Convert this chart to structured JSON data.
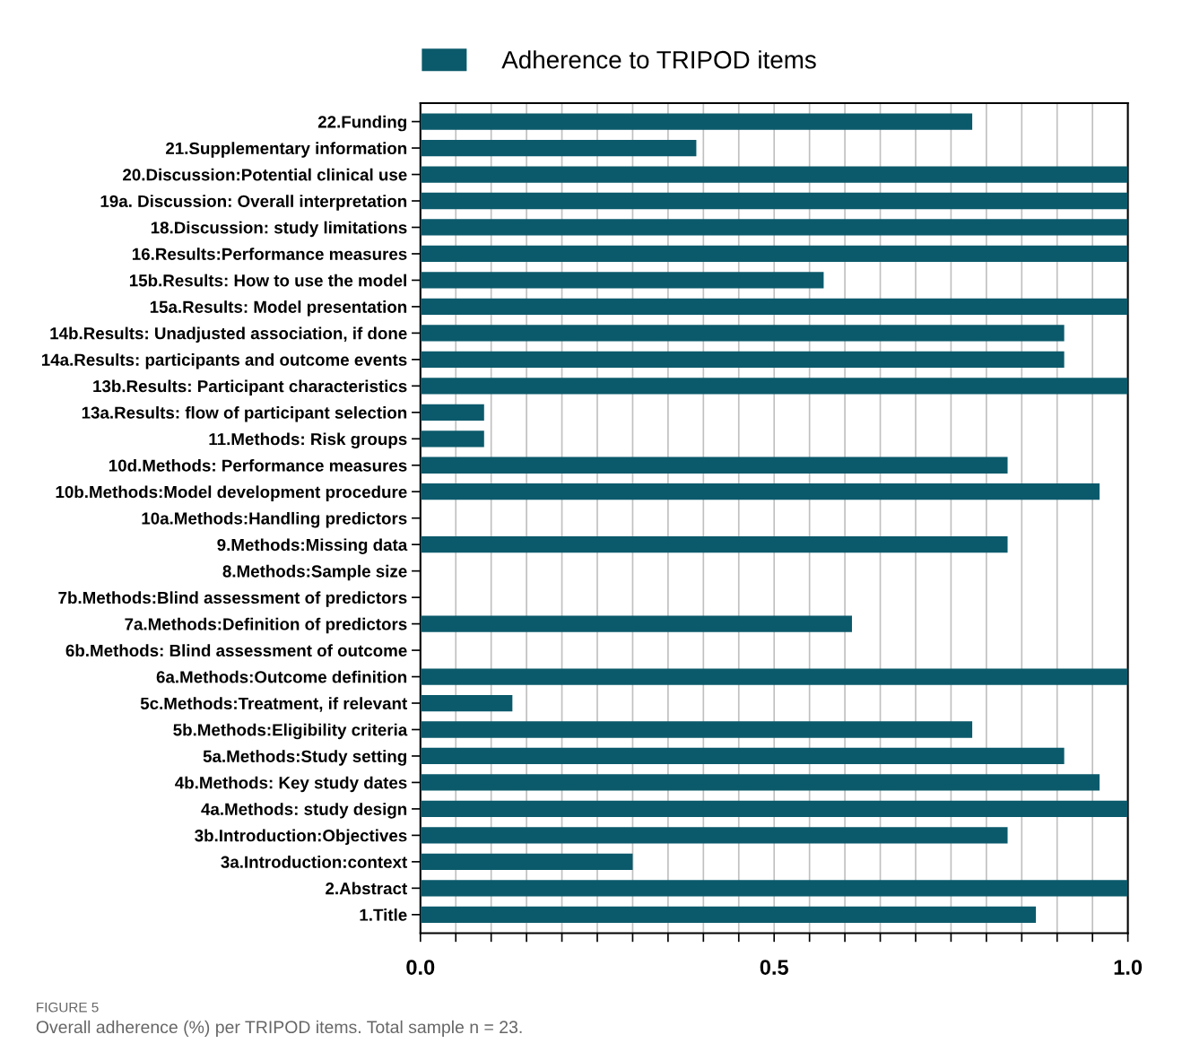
{
  "chart_data": {
    "type": "bar",
    "orientation": "horizontal",
    "categories": [
      "22.Funding",
      "21.Supplementary information",
      "20.Discussion:Potential clinical use",
      "19a. Discussion: Overall interpretation",
      "18.Discussion: study limitations",
      "16.Results:Performance measures",
      "15b.Results: How to use the model",
      "15a.Results: Model presentation",
      "14b.Results: Unadjusted association, if done",
      "14a.Results: participants and outcome events",
      "13b.Results: Participant characteristics",
      "13a.Results: flow of participant selection",
      "11.Methods: Risk groups",
      "10d.Methods: Performance measures",
      "10b.Methods:Model development procedure",
      "10a.Methods:Handling predictors",
      "9.Methods:Missing data",
      "8.Methods:Sample size",
      "7b.Methods:Blind assessment of predictors",
      "7a.Methods:Definition of predictors",
      "6b.Methods: Blind assessment of outcome",
      "6a.Methods:Outcome definition",
      "5c.Methods:Treatment, if relevant",
      "5b.Methods:Eligibility criteria",
      "5a.Methods:Study setting",
      "4b.Methods: Key study dates",
      "4a.Methods: study design",
      "3b.Introduction:Objectives",
      "3a.Introduction:context",
      "2.Abstract",
      "1.Title"
    ],
    "series": [
      {
        "name": "Adherence to TRIPOD items",
        "color": "#0b5a6b",
        "values": [
          0.78,
          0.39,
          1.0,
          1.0,
          1.0,
          1.0,
          0.57,
          1.0,
          0.91,
          0.91,
          1.0,
          0.09,
          0.09,
          0.83,
          0.96,
          0,
          0.83,
          0,
          0,
          0.61,
          0,
          1.0,
          0.13,
          0.78,
          0.91,
          0.96,
          1.0,
          0.83,
          0.3,
          1.0,
          0.87
        ]
      }
    ],
    "xlim": [
      0,
      1.0
    ],
    "xticks": [
      {
        "value": 0,
        "label": "0.0"
      },
      {
        "value": 0.05,
        "label": null
      },
      {
        "value": 0.1,
        "label": null
      },
      {
        "value": 0.15,
        "label": null
      },
      {
        "value": 0.2,
        "label": null
      },
      {
        "value": 0.25,
        "label": null
      },
      {
        "value": 0.3,
        "label": null
      },
      {
        "value": 0.35,
        "label": null
      },
      {
        "value": 0.4,
        "label": null
      },
      {
        "value": 0.45,
        "label": null
      },
      {
        "value": 0.5,
        "label": "0.5"
      },
      {
        "value": 0.55,
        "label": null
      },
      {
        "value": 0.6,
        "label": null
      },
      {
        "value": 0.65,
        "label": null
      },
      {
        "value": 0.7,
        "label": null
      },
      {
        "value": 0.75,
        "label": null
      },
      {
        "value": 0.8,
        "label": null
      },
      {
        "value": 0.85,
        "label": null
      },
      {
        "value": 0.9,
        "label": null
      },
      {
        "value": 0.95,
        "label": null
      },
      {
        "value": 1.0,
        "label": "1.0"
      }
    ],
    "grid": "x",
    "legend": "top",
    "annotations": [
      "FIGURE 5",
      "Overall adherence (%) per TRIPOD items. Total sample n = 23."
    ]
  }
}
